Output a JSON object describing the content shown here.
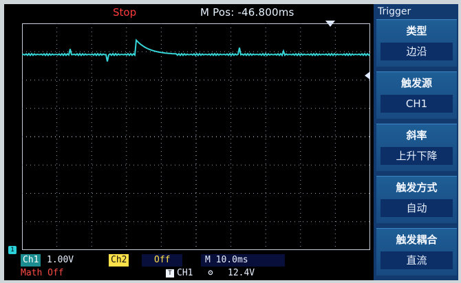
{
  "status": {
    "run_state": "Stop",
    "m_pos_label": "M Pos:",
    "m_pos_value": "-46.800ms"
  },
  "channel_markers": {
    "ch1_ground": "1"
  },
  "bottom": {
    "ch1_label": "Ch1",
    "ch1_scale": "1.00V",
    "ch2_label": "Ch2",
    "ch2_state": "Off",
    "timebase": "M 10.0ms",
    "math_state": "Math Off",
    "trigger_source_icon": "T",
    "trigger_source": "CH1",
    "slope_icon": "ʘ",
    "trigger_level": "12.4V"
  },
  "menu": {
    "title": "Trigger",
    "items": [
      {
        "label": "类型",
        "value": "边沿"
      },
      {
        "label": "触发源",
        "value": "CH1"
      },
      {
        "label": "斜率",
        "value": "上升下降"
      },
      {
        "label": "触发方式",
        "value": "自动"
      },
      {
        "label": "触发耦合",
        "value": "直流"
      }
    ]
  },
  "waveform": {
    "color": "#37d6d9",
    "grid_color": "#9aa3b5",
    "baseline_divisions_from_top": 1.1,
    "pulse_peak_divisions_from_top": 0.55
  }
}
